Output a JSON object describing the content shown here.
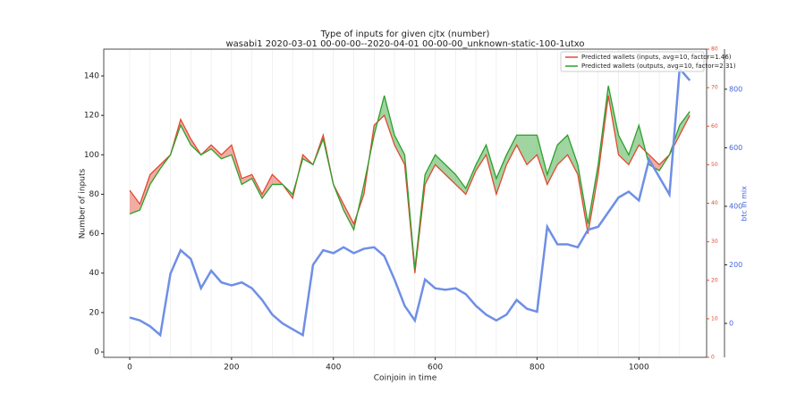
{
  "chart_data": {
    "type": "line",
    "title": "Type of inputs for given cjtx (number)",
    "subtitle": "wasabi1 2020-03-01 00-00-00--2020-04-01 00-00-00_unknown-static-100-1utxo",
    "xlabel": "Coinjoin in time",
    "ylabel": "Number of inputs",
    "y2label": "btc in mix",
    "x": [
      0,
      20,
      40,
      60,
      80,
      100,
      120,
      140,
      160,
      180,
      200,
      220,
      240,
      260,
      280,
      300,
      320,
      340,
      360,
      380,
      400,
      420,
      440,
      460,
      480,
      500,
      520,
      540,
      560,
      580,
      600,
      620,
      640,
      660,
      680,
      700,
      720,
      740,
      760,
      780,
      800,
      820,
      840,
      860,
      880,
      900,
      920,
      940,
      960,
      980,
      1000,
      1020,
      1040,
      1060,
      1080,
      1100
    ],
    "series": [
      {
        "name": "Predicted wallets (inputs, avg=10, factor=1.46)",
        "color": "#e24a33",
        "values": [
          82,
          75,
          90,
          95,
          100,
          118,
          108,
          100,
          105,
          100,
          105,
          88,
          90,
          80,
          90,
          85,
          78,
          100,
          95,
          110,
          85,
          75,
          65,
          80,
          115,
          120,
          105,
          95,
          40,
          85,
          95,
          90,
          85,
          80,
          92,
          100,
          80,
          95,
          105,
          95,
          100,
          85,
          95,
          100,
          90,
          60,
          90,
          130,
          100,
          95,
          105,
          100,
          95,
          100,
          110,
          120
        ]
      },
      {
        "name": "Predicted wallets (outputs, avg=10, factor=2.31)",
        "color": "#2ca02c",
        "values": [
          70,
          72,
          85,
          93,
          100,
          115,
          105,
          100,
          103,
          98,
          100,
          85,
          88,
          78,
          85,
          85,
          80,
          98,
          95,
          108,
          85,
          72,
          62,
          85,
          110,
          130,
          110,
          100,
          42,
          90,
          100,
          95,
          90,
          83,
          95,
          105,
          88,
          100,
          110,
          110,
          110,
          90,
          105,
          110,
          95,
          65,
          95,
          135,
          110,
          100,
          115,
          95,
          92,
          100,
          115,
          122
        ]
      },
      {
        "name": "btc in mix",
        "color": "#6f8fe6",
        "axis": "y2",
        "values": [
          20,
          10,
          -10,
          -40,
          170,
          250,
          220,
          120,
          180,
          140,
          130,
          140,
          120,
          80,
          30,
          0,
          -20,
          -40,
          200,
          250,
          240,
          260,
          240,
          255,
          260,
          230,
          150,
          60,
          10,
          150,
          120,
          115,
          120,
          100,
          60,
          30,
          10,
          30,
          80,
          50,
          40,
          330,
          270,
          270,
          260,
          320,
          330,
          380,
          430,
          450,
          420,
          560,
          500,
          440,
          870,
          830
        ]
      }
    ],
    "xlim": [
      -51,
      1133
    ],
    "xticks": [
      0,
      200,
      400,
      600,
      800,
      1000
    ],
    "ylim": [
      -2.7,
      153.6
    ],
    "yticks": [
      0,
      20,
      40,
      60,
      80,
      100,
      120,
      140
    ],
    "y3lim": [
      0,
      80
    ],
    "y3ticks": [
      0,
      10,
      20,
      30,
      40,
      50,
      60,
      70,
      80
    ],
    "y2lim": [
      -116,
      937
    ],
    "y2ticks": [
      0,
      200,
      400,
      600,
      800
    ],
    "legend": "upper right"
  }
}
